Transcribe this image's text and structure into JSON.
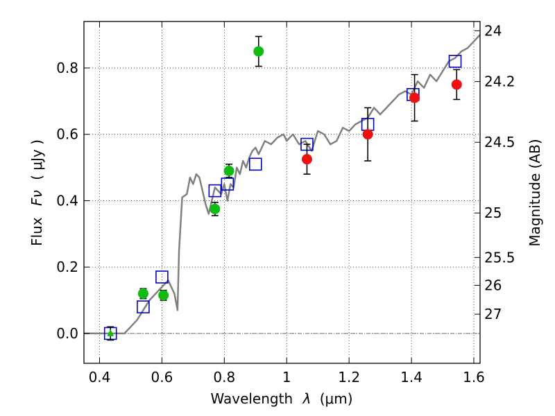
{
  "chart_data": {
    "type": "scatter",
    "title": "",
    "xlabel": "Wavelength",
    "xlabel_symbol": "λ",
    "xlabel_unit": "(μm)",
    "ylabel": "Flux",
    "ylabel_symbol": "Fν",
    "ylabel_unit": "( μJy )",
    "y2label": "Magnitude (AB)",
    "xlim": [
      0.35,
      1.62
    ],
    "ylim": [
      -0.09,
      0.94
    ],
    "grid": true,
    "x_ticks": [
      0.4,
      0.6,
      0.8,
      1.0,
      1.2,
      1.4,
      1.6
    ],
    "x_tick_labels": [
      "0.4",
      "0.6",
      "0.8",
      "1",
      "1.2",
      "1.4",
      "1.6"
    ],
    "y_ticks": [
      0.0,
      0.2,
      0.4,
      0.6,
      0.8
    ],
    "y_tick_labels": [
      "0.0",
      "0.2",
      "0.4",
      "0.6",
      "0.8"
    ],
    "y2_ticks": [
      {
        "label": "24",
        "flux": 0.912
      },
      {
        "label": "24.2",
        "flux": 0.759
      },
      {
        "label": "24.5",
        "flux": 0.576
      },
      {
        "label": "25",
        "flux": 0.363
      },
      {
        "label": "25.5",
        "flux": 0.229
      },
      {
        "label": "26",
        "flux": 0.145
      },
      {
        "label": "27",
        "flux": 0.058
      }
    ],
    "zero_line": 0.0,
    "series": [
      {
        "name": "model_sed",
        "kind": "line",
        "color": "#808080",
        "x": [
          0.35,
          0.48,
          0.5,
          0.52,
          0.54,
          0.56,
          0.58,
          0.6,
          0.62,
          0.64,
          0.65,
          0.655,
          0.665,
          0.68,
          0.69,
          0.7,
          0.71,
          0.72,
          0.73,
          0.74,
          0.75,
          0.76,
          0.77,
          0.78,
          0.79,
          0.8,
          0.81,
          0.82,
          0.83,
          0.84,
          0.85,
          0.86,
          0.87,
          0.88,
          0.89,
          0.9,
          0.91,
          0.93,
          0.95,
          0.97,
          0.99,
          1.0,
          1.02,
          1.04,
          1.06,
          1.08,
          1.1,
          1.12,
          1.14,
          1.16,
          1.18,
          1.2,
          1.22,
          1.24,
          1.26,
          1.28,
          1.3,
          1.32,
          1.34,
          1.36,
          1.38,
          1.4,
          1.42,
          1.44,
          1.46,
          1.48,
          1.5,
          1.52,
          1.54,
          1.56,
          1.58,
          1.6,
          1.62
        ],
        "y": [
          0.0,
          0.0,
          0.02,
          0.04,
          0.07,
          0.1,
          0.12,
          0.14,
          0.16,
          0.12,
          0.07,
          0.25,
          0.41,
          0.42,
          0.47,
          0.45,
          0.48,
          0.47,
          0.43,
          0.39,
          0.36,
          0.4,
          0.44,
          0.43,
          0.42,
          0.45,
          0.4,
          0.45,
          0.44,
          0.5,
          0.48,
          0.52,
          0.5,
          0.53,
          0.55,
          0.56,
          0.54,
          0.58,
          0.57,
          0.59,
          0.6,
          0.58,
          0.6,
          0.57,
          0.58,
          0.55,
          0.61,
          0.6,
          0.57,
          0.58,
          0.62,
          0.61,
          0.63,
          0.64,
          0.65,
          0.68,
          0.66,
          0.68,
          0.7,
          0.72,
          0.73,
          0.72,
          0.76,
          0.74,
          0.78,
          0.76,
          0.79,
          0.82,
          0.83,
          0.85,
          0.86,
          0.88,
          0.9
        ]
      },
      {
        "name": "model_photometry",
        "kind": "open-square",
        "color": "#0000cc",
        "x": [
          0.435,
          0.54,
          0.6,
          0.77,
          0.81,
          0.9,
          1.065,
          1.26,
          1.405,
          1.54
        ],
        "y": [
          0.0,
          0.08,
          0.17,
          0.43,
          0.45,
          0.51,
          0.57,
          0.63,
          0.72,
          0.82
        ]
      },
      {
        "name": "optical_observed",
        "kind": "filled-circle",
        "color": "#11bb11",
        "x": [
          0.54,
          0.605,
          0.77,
          0.815,
          0.91
        ],
        "y": [
          0.12,
          0.115,
          0.375,
          0.49,
          0.85
        ],
        "yerr": [
          0.015,
          0.015,
          0.02,
          0.02,
          0.045
        ]
      },
      {
        "name": "optical_upper_limit",
        "kind": "triangle",
        "color": "#11bb11",
        "x": [
          0.435
        ],
        "y": [
          0.0
        ],
        "yerr": [
          0.02
        ]
      },
      {
        "name": "nir_observed",
        "kind": "filled-circle",
        "color": "#ee1111",
        "x": [
          1.065,
          1.26,
          1.41,
          1.545
        ],
        "y": [
          0.525,
          0.6,
          0.71,
          0.75
        ],
        "yerr": [
          0.045,
          0.08,
          0.07,
          0.045
        ]
      }
    ]
  }
}
